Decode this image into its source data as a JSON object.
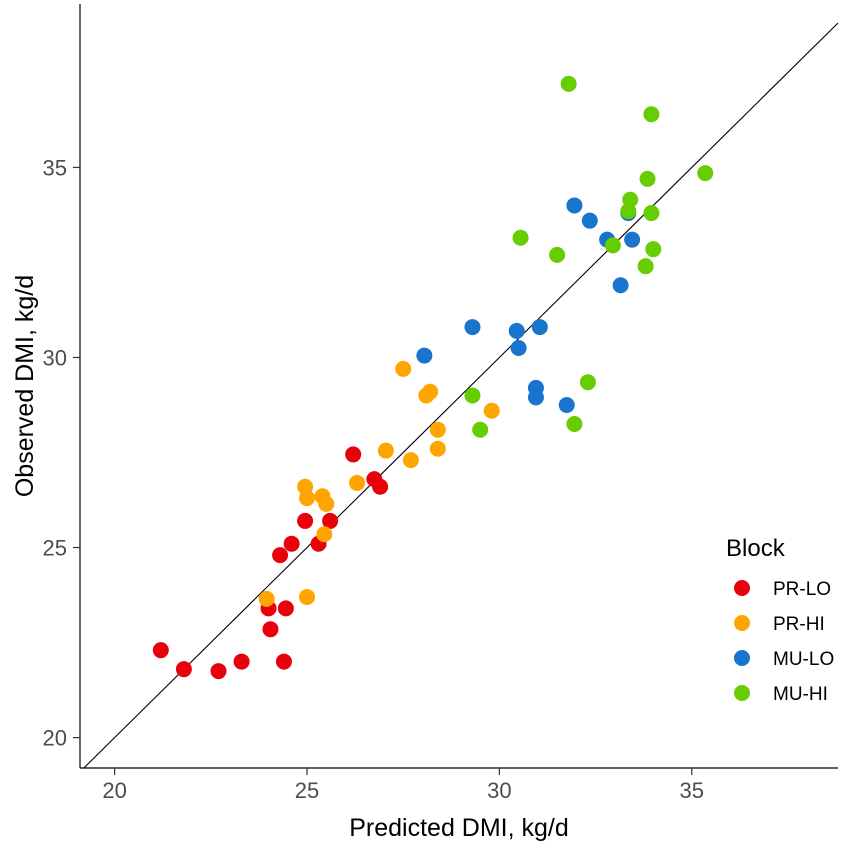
{
  "chart_data": {
    "type": "scatter",
    "xlabel": "Predicted DMI, kg/d",
    "ylabel": "Observed DMI, kg/d",
    "xlim": [
      19.1,
      38.8
    ],
    "ylim": [
      19.2,
      39.3
    ],
    "x_ticks": [
      20,
      25,
      30,
      35
    ],
    "y_ticks": [
      20,
      25,
      30,
      35
    ],
    "reference_line": "y = x",
    "legend_title": "Block",
    "legend_position": "right",
    "series": [
      {
        "name": "PR-LO",
        "color": "#e8000b",
        "points": [
          [
            21.2,
            22.3
          ],
          [
            21.8,
            21.8
          ],
          [
            22.7,
            21.75
          ],
          [
            23.3,
            22.0
          ],
          [
            24.0,
            23.4
          ],
          [
            24.05,
            22.85
          ],
          [
            24.4,
            22.0
          ],
          [
            24.45,
            23.4
          ],
          [
            24.3,
            24.8
          ],
          [
            24.6,
            25.1
          ],
          [
            24.95,
            25.7
          ],
          [
            25.3,
            25.1
          ],
          [
            25.6,
            25.7
          ],
          [
            26.2,
            27.45
          ],
          [
            26.75,
            26.8
          ],
          [
            26.9,
            26.6
          ]
        ]
      },
      {
        "name": "PR-HI",
        "color": "#ffa500",
        "points": [
          [
            23.95,
            23.65
          ],
          [
            24.95,
            26.6
          ],
          [
            25.0,
            26.3
          ],
          [
            25.0,
            23.7
          ],
          [
            25.4,
            26.35
          ],
          [
            25.5,
            26.15
          ],
          [
            25.45,
            25.35
          ],
          [
            26.3,
            26.7
          ],
          [
            27.05,
            27.55
          ],
          [
            27.5,
            29.7
          ],
          [
            27.7,
            27.3
          ],
          [
            28.1,
            29.0
          ],
          [
            28.2,
            29.1
          ],
          [
            28.4,
            28.1
          ],
          [
            28.4,
            27.6
          ],
          [
            29.8,
            28.6
          ]
        ]
      },
      {
        "name": "MU-LO",
        "color": "#1874cd",
        "points": [
          [
            28.05,
            30.05
          ],
          [
            29.3,
            30.8
          ],
          [
            30.45,
            30.7
          ],
          [
            30.5,
            30.25
          ],
          [
            31.05,
            30.8
          ],
          [
            30.95,
            29.2
          ],
          [
            30.95,
            28.95
          ],
          [
            31.75,
            28.75
          ],
          [
            31.95,
            34.0
          ],
          [
            32.35,
            33.6
          ],
          [
            32.8,
            33.1
          ],
          [
            33.15,
            31.9
          ],
          [
            33.35,
            33.8
          ],
          [
            33.45,
            33.1
          ]
        ]
      },
      {
        "name": "MU-HI",
        "color": "#66cd00",
        "points": [
          [
            31.8,
            37.2
          ],
          [
            33.95,
            36.4
          ],
          [
            35.35,
            34.85
          ],
          [
            33.85,
            34.7
          ],
          [
            33.4,
            34.15
          ],
          [
            33.35,
            33.85
          ],
          [
            33.95,
            33.8
          ],
          [
            30.55,
            33.15
          ],
          [
            31.5,
            32.7
          ],
          [
            32.95,
            32.95
          ],
          [
            34.0,
            32.85
          ],
          [
            33.8,
            32.4
          ],
          [
            32.3,
            29.35
          ],
          [
            29.3,
            29.0
          ],
          [
            29.5,
            28.1
          ],
          [
            31.95,
            28.25
          ]
        ]
      }
    ]
  }
}
